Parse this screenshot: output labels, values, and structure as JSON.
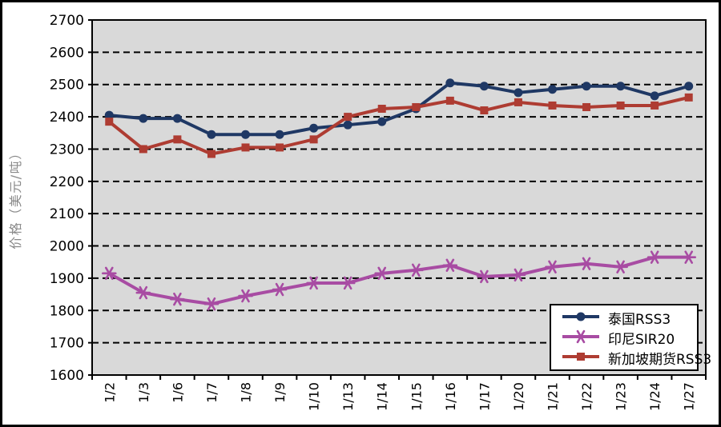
{
  "chart_data": {
    "type": "line",
    "title": "",
    "xlabel": "",
    "ylabel": "价格（美元/吨）",
    "ylim": [
      1600,
      2700
    ],
    "ytick_step": 100,
    "ytick_labels": [
      "1600",
      "1700",
      "1800",
      "1900",
      "2000",
      "2100",
      "2200",
      "2300",
      "2400",
      "2500",
      "2600",
      "2700"
    ],
    "grid": "horizontal-dashed",
    "legend_position": "bottom-right",
    "categories": [
      "1/2",
      "1/3",
      "1/6",
      "1/7",
      "1/8",
      "1/9",
      "1/10",
      "1/13",
      "1/14",
      "1/15",
      "1/16",
      "1/17",
      "1/20",
      "1/21",
      "1/22",
      "1/23",
      "1/24",
      "1/27"
    ],
    "series": [
      {
        "name": "泰国RSS3",
        "color": "#1F3864",
        "marker": "circle",
        "values": [
          2405,
          2395,
          2395,
          2345,
          2345,
          2345,
          2365,
          2375,
          2385,
          2425,
          2505,
          2495,
          2475,
          2485,
          2495,
          2495,
          2465,
          2495
        ]
      },
      {
        "name": "印尼SIR20",
        "color": "#A84CA3",
        "marker": "asterisk",
        "values": [
          1915,
          1855,
          1835,
          1820,
          1845,
          1865,
          1885,
          1885,
          1915,
          1925,
          1940,
          1905,
          1910,
          1935,
          1945,
          1935,
          1965,
          1965
        ]
      },
      {
        "name": "新加坡期货RSS3",
        "color": "#AE3C32",
        "marker": "square",
        "values": [
          2385,
          2300,
          2330,
          2285,
          2305,
          2305,
          2330,
          2400,
          2425,
          2430,
          2450,
          2420,
          2445,
          2435,
          2430,
          2435,
          2435,
          2460
        ]
      }
    ],
    "colors": {
      "plot_background": "#D9D9D9",
      "page_background": "#FFFFFF",
      "grid_line": "#000000",
      "axis_line": "#000000",
      "tick_text": "#000000",
      "ylabel_text": "#8A8A8A"
    }
  }
}
